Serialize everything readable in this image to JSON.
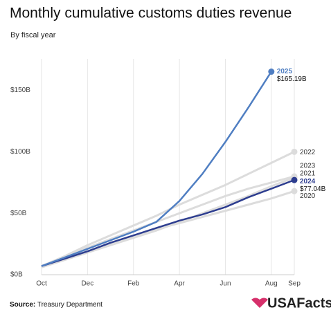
{
  "chart_data": {
    "type": "line",
    "title": "Monthly cumulative customs duties revenue",
    "subtitle": "By fiscal year",
    "categories": [
      "Oct",
      null,
      "Dec",
      null,
      "Feb",
      null,
      "Apr",
      null,
      "Jun",
      null,
      "Aug",
      "Sep"
    ],
    "ylim": [
      0,
      170
    ],
    "yticks": [
      {
        "value": 0,
        "label": "$0B"
      },
      {
        "value": 50,
        "label": "$50B"
      },
      {
        "value": 100,
        "label": "$100B"
      },
      {
        "value": 150,
        "label": "$150B"
      }
    ],
    "grid": true,
    "series": [
      {
        "name": "2020",
        "color": "#dcdcdc",
        "values": [
          7,
          13,
          19,
          25,
          31,
          37,
          42,
          47,
          52,
          57,
          62,
          68
        ]
      },
      {
        "name": "2021",
        "color": "#dcdcdc",
        "values": [
          6,
          12,
          18,
          24,
          30,
          36,
          43,
          50,
          57,
          64,
          72,
          79
        ]
      },
      {
        "name": "2022",
        "color": "#dcdcdc",
        "values": [
          7,
          15,
          24,
          32,
          40,
          48,
          57,
          65,
          73,
          82,
          91,
          100
        ]
      },
      {
        "name": "2023",
        "color": "#dcdcdc",
        "values": [
          7,
          14,
          22,
          29,
          36,
          43,
          50,
          57,
          64,
          70,
          75,
          80
        ]
      },
      {
        "name": "2024",
        "color": "#2d3d8f",
        "values": [
          7,
          13,
          19,
          26,
          32,
          38,
          44,
          49,
          55,
          63,
          70,
          77.04
        ],
        "value_labels": [
          null,
          null,
          null,
          null,
          null,
          null,
          null,
          null,
          null,
          null,
          null,
          "$77.04B"
        ]
      },
      {
        "name": "2025",
        "color": "#4f7ec2",
        "values": [
          7,
          14,
          21,
          28,
          35,
          43,
          60,
          82,
          108,
          136,
          165.19,
          null
        ],
        "value_labels": [
          null,
          null,
          null,
          null,
          null,
          null,
          null,
          null,
          null,
          null,
          "$165.19B",
          null
        ]
      }
    ]
  },
  "footer": {
    "source_label": "Source:",
    "source": "Treasury Department",
    "logo": "USAFacts"
  }
}
